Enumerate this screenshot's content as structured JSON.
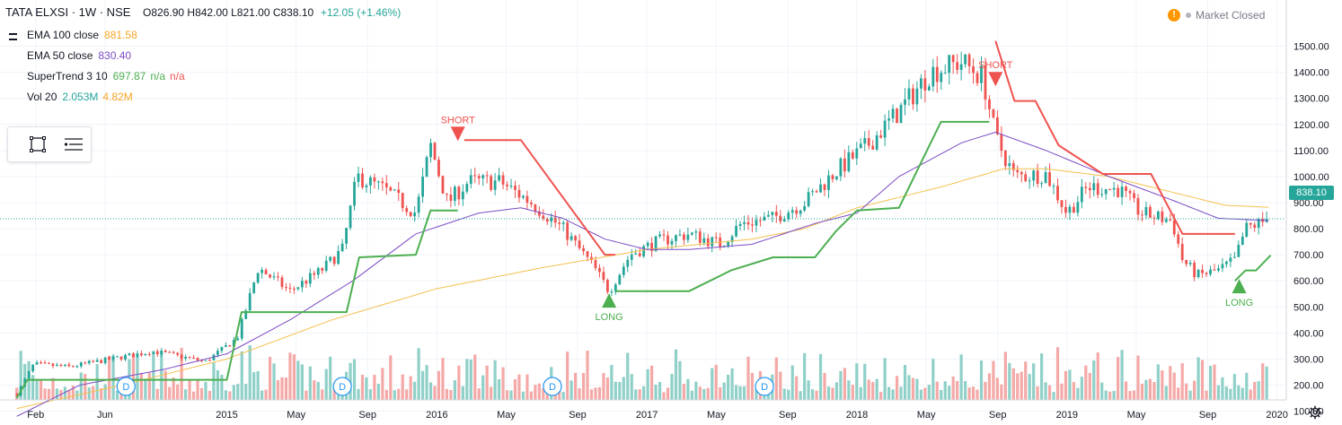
{
  "header": {
    "symbol": "TATA ELXSI · 1W · NSE",
    "ohlc": "O826.90 H842.00 L821.00 C838.10",
    "change": "+12.05 (+1.46%)"
  },
  "indicators": [
    {
      "name": "EMA 100 close",
      "v1": "881.58",
      "c1": "#f5a623"
    },
    {
      "name": "EMA 50 close",
      "v1": "830.40",
      "c1": "#7b4bc4"
    },
    {
      "name": "SuperTrend 3 10",
      "v1": "697.87",
      "c1": "#4caf50",
      "v2": "n/a",
      "c2": "#4caf50",
      "v3": "n/a",
      "c3": "#ef5350"
    },
    {
      "name": "Vol 20",
      "v1": "2.053M",
      "c1": "#26a69a",
      "v2": "4.82M",
      "c2": "#f5a623"
    }
  ],
  "market_status": "Market Closed",
  "last_price": "838.10",
  "colors": {
    "up": "#26a69a",
    "down": "#ef5350",
    "vol_up": "#8fd0c8",
    "vol_down": "#f4a9a7",
    "ema100": "#f5c04e",
    "ema50": "#7b4bc4",
    "st_up": "#4caf50",
    "st_down": "#ef5350"
  },
  "chart_data": {
    "type": "candlestick",
    "title": "TATA ELXSI · 1W · NSE",
    "ylim": [
      0,
      1550
    ],
    "y_ticks": [
      "100.00",
      "200.00",
      "300.00",
      "400.00",
      "500.00",
      "600.00",
      "700.00",
      "800.00",
      "900.00",
      "1000.00",
      "1100.00",
      "1200.00",
      "1300.00",
      "1400.00",
      "1500.00"
    ],
    "x_ticks": [
      {
        "label": "Feb",
        "t": 2014.09
      },
      {
        "label": "Jun",
        "t": 2014.42
      },
      {
        "label": "2015",
        "t": 2015.0
      },
      {
        "label": "May",
        "t": 2015.33
      },
      {
        "label": "Sep",
        "t": 2015.67
      },
      {
        "label": "2016",
        "t": 2016.0
      },
      {
        "label": "May",
        "t": 2016.33
      },
      {
        "label": "Sep",
        "t": 2016.67
      },
      {
        "label": "2017",
        "t": 2017.0
      },
      {
        "label": "May",
        "t": 2017.33
      },
      {
        "label": "Sep",
        "t": 2017.67
      },
      {
        "label": "2018",
        "t": 2018.0
      },
      {
        "label": "May",
        "t": 2018.33
      },
      {
        "label": "Sep",
        "t": 2018.67
      },
      {
        "label": "2019",
        "t": 2019.0
      },
      {
        "label": "May",
        "t": 2019.33
      },
      {
        "label": "Sep",
        "t": 2019.67
      },
      {
        "label": "2020",
        "t": 2020.0
      }
    ],
    "close_anchors": [
      [
        2014.0,
        165
      ],
      [
        2014.08,
        280
      ],
      [
        2014.25,
        270
      ],
      [
        2014.45,
        300
      ],
      [
        2014.65,
        330
      ],
      [
        2014.9,
        290
      ],
      [
        2015.05,
        380
      ],
      [
        2015.15,
        650
      ],
      [
        2015.3,
        560
      ],
      [
        2015.45,
        640
      ],
      [
        2015.55,
        720
      ],
      [
        2015.62,
        1000
      ],
      [
        2015.75,
        950
      ],
      [
        2015.9,
        860
      ],
      [
        2015.97,
        1120
      ],
      [
        2016.05,
        900
      ],
      [
        2016.15,
        980
      ],
      [
        2016.3,
        980
      ],
      [
        2016.45,
        900
      ],
      [
        2016.6,
        800
      ],
      [
        2016.75,
        650
      ],
      [
        2016.82,
        560
      ],
      [
        2016.92,
        700
      ],
      [
        2017.05,
        750
      ],
      [
        2017.2,
        780
      ],
      [
        2017.35,
        740
      ],
      [
        2017.45,
        820
      ],
      [
        2017.6,
        840
      ],
      [
        2017.75,
        900
      ],
      [
        2017.9,
        1020
      ],
      [
        2018.05,
        1120
      ],
      [
        2018.2,
        1250
      ],
      [
        2018.35,
        1400
      ],
      [
        2018.5,
        1440
      ],
      [
        2018.6,
        1380
      ],
      [
        2018.66,
        1150
      ],
      [
        2018.75,
        1000
      ],
      [
        2018.9,
        1010
      ],
      [
        2019.0,
        860
      ],
      [
        2019.1,
        960
      ],
      [
        2019.25,
        950
      ],
      [
        2019.35,
        860
      ],
      [
        2019.5,
        830
      ],
      [
        2019.55,
        680
      ],
      [
        2019.62,
        620
      ],
      [
        2019.72,
        640
      ],
      [
        2019.8,
        680
      ],
      [
        2019.85,
        800
      ],
      [
        2019.97,
        838
      ]
    ],
    "ema100_anchors": [
      [
        2014.0,
        110
      ],
      [
        2014.5,
        200
      ],
      [
        2015.0,
        300
      ],
      [
        2015.5,
        450
      ],
      [
        2016.0,
        570
      ],
      [
        2016.5,
        650
      ],
      [
        2017.0,
        720
      ],
      [
        2017.5,
        760
      ],
      [
        2017.75,
        800
      ],
      [
        2018.0,
        880
      ],
      [
        2018.4,
        960
      ],
      [
        2018.7,
        1030
      ],
      [
        2018.9,
        1030
      ],
      [
        2019.2,
        1000
      ],
      [
        2019.5,
        940
      ],
      [
        2019.75,
        890
      ],
      [
        2019.97,
        881.58
      ]
    ],
    "ema50_anchors": [
      [
        2014.0,
        80
      ],
      [
        2014.3,
        200
      ],
      [
        2014.7,
        260
      ],
      [
        2015.0,
        320
      ],
      [
        2015.3,
        450
      ],
      [
        2015.6,
        600
      ],
      [
        2015.9,
        780
      ],
      [
        2016.2,
        860
      ],
      [
        2016.4,
        880
      ],
      [
        2016.6,
        840
      ],
      [
        2016.8,
        760
      ],
      [
        2017.0,
        720
      ],
      [
        2017.2,
        720
      ],
      [
        2017.5,
        740
      ],
      [
        2017.8,
        820
      ],
      [
        2018.0,
        860
      ],
      [
        2018.2,
        1000
      ],
      [
        2018.5,
        1130
      ],
      [
        2018.66,
        1170
      ],
      [
        2018.9,
        1100
      ],
      [
        2019.2,
        1000
      ],
      [
        2019.5,
        910
      ],
      [
        2019.72,
        840
      ],
      [
        2019.97,
        830.4
      ]
    ],
    "supertrend": [
      {
        "dir": "up",
        "points": [
          [
            2014.0,
            150
          ],
          [
            2014.05,
            220
          ],
          [
            2015.0,
            220
          ],
          [
            2015.07,
            480
          ],
          [
            2015.57,
            480
          ],
          [
            2015.63,
            690
          ],
          [
            2015.9,
            700
          ],
          [
            2015.97,
            870
          ],
          [
            2016.1,
            870
          ]
        ]
      },
      {
        "dir": "down",
        "points": [
          [
            2016.13,
            1140
          ],
          [
            2016.4,
            1140
          ],
          [
            2016.8,
            700
          ],
          [
            2016.85,
            700
          ]
        ]
      },
      {
        "dir": "up",
        "points": [
          [
            2016.85,
            560
          ],
          [
            2017.2,
            560
          ],
          [
            2017.4,
            640
          ],
          [
            2017.6,
            690
          ],
          [
            2017.8,
            690
          ],
          [
            2017.9,
            790
          ],
          [
            2018.0,
            870
          ],
          [
            2018.2,
            880
          ],
          [
            2018.4,
            1210
          ],
          [
            2018.63,
            1210
          ]
        ]
      },
      {
        "dir": "down",
        "points": [
          [
            2018.66,
            1520
          ],
          [
            2018.75,
            1290
          ],
          [
            2018.85,
            1290
          ],
          [
            2018.96,
            1120
          ],
          [
            2019.17,
            1010
          ],
          [
            2019.4,
            1010
          ],
          [
            2019.55,
            780
          ],
          [
            2019.8,
            780
          ]
        ]
      },
      {
        "dir": "up",
        "points": [
          [
            2019.8,
            600
          ],
          [
            2019.85,
            640
          ],
          [
            2019.9,
            640
          ],
          [
            2019.97,
            698
          ]
        ]
      }
    ],
    "signals": [
      {
        "label": "SHORT",
        "type": "short",
        "t": 2016.1,
        "price": 1150
      },
      {
        "label": "LONG",
        "type": "long",
        "t": 2016.82,
        "price": 545
      },
      {
        "label": "SHORT",
        "type": "short",
        "t": 2018.66,
        "price": 1360
      },
      {
        "label": "LONG",
        "type": "long",
        "t": 2019.82,
        "price": 600
      }
    ],
    "dividends": [
      {
        "label": "D",
        "t": 2014.52
      },
      {
        "label": "D",
        "t": 2015.55
      },
      {
        "label": "D",
        "t": 2016.55
      },
      {
        "label": "D",
        "t": 2017.56
      }
    ],
    "last_close": 838.1
  }
}
